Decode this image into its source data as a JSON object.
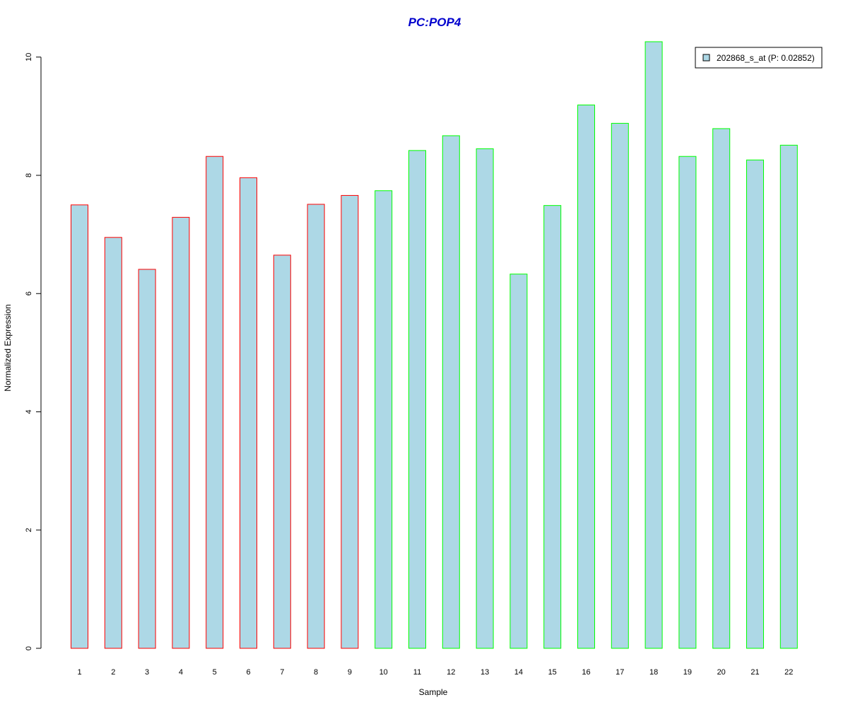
{
  "chart_data": {
    "type": "bar",
    "title": "PC:POP4",
    "xlabel": "Sample",
    "ylabel": "Normalized Expression",
    "categories": [
      "1",
      "2",
      "3",
      "4",
      "5",
      "6",
      "7",
      "8",
      "9",
      "10",
      "11",
      "12",
      "13",
      "14",
      "15",
      "16",
      "17",
      "18",
      "19",
      "20",
      "21",
      "22"
    ],
    "series": [
      {
        "name": "202868_s_at (P: 0.02852)",
        "values": [
          7.5,
          6.95,
          6.41,
          7.29,
          8.32,
          7.96,
          6.65,
          7.51,
          7.66,
          7.74,
          8.42,
          8.67,
          8.45,
          6.33,
          7.49,
          9.19,
          8.88,
          10.26,
          8.32,
          8.79,
          8.26,
          8.51
        ]
      }
    ],
    "group_border_colors": [
      "#ff0000",
      "#ff0000",
      "#ff0000",
      "#ff0000",
      "#ff0000",
      "#ff0000",
      "#ff0000",
      "#ff0000",
      "#ff0000",
      "#00ff00",
      "#00ff00",
      "#00ff00",
      "#00ff00",
      "#00ff00",
      "#00ff00",
      "#00ff00",
      "#00ff00",
      "#00ff00",
      "#00ff00",
      "#00ff00",
      "#00ff00",
      "#00ff00"
    ],
    "bar_fill_color": "#add8e6",
    "title_color": "#0000cd",
    "ylim": [
      0,
      10.26
    ],
    "yticks": [
      "0",
      "2",
      "4",
      "6",
      "8",
      "10"
    ],
    "grid": false,
    "legend_position": "top-right"
  }
}
